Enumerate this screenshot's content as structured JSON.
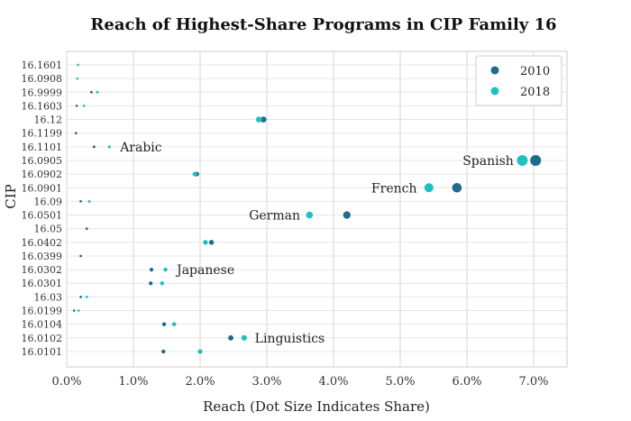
{
  "chart_data": {
    "type": "scatter",
    "title": "Reach of Highest-Share Programs in CIP Family 16",
    "xlabel": "Reach (Dot Size Indicates Share)",
    "ylabel": "CIP",
    "xlim": [
      0,
      0.075
    ],
    "x_ticks": [
      "0.0%",
      "1.0%",
      "2.0%",
      "3.0%",
      "4.0%",
      "5.0%",
      "6.0%",
      "7.0%"
    ],
    "grid": true,
    "legend_position": "top-right",
    "categories": [
      "16.1601",
      "16.0908",
      "16.9999",
      "16.1603",
      "16.12",
      "16.1199",
      "16.1101",
      "16.0905",
      "16.0902",
      "16.0901",
      "16.09",
      "16.0501",
      "16.05",
      "16.0402",
      "16.0399",
      "16.0302",
      "16.0301",
      "16.03",
      "16.0199",
      "16.0104",
      "16.0102",
      "16.0101"
    ],
    "series": [
      {
        "name": "2010",
        "color": "#1f6b8e",
        "values": [
          {
            "cip": "16.9999",
            "x": 0.0037
          },
          {
            "cip": "16.1603",
            "x": 0.0015
          },
          {
            "cip": "16.12",
            "x": 0.0295
          },
          {
            "cip": "16.1199",
            "x": 0.0014
          },
          {
            "cip": "16.1101",
            "x": 0.0041
          },
          {
            "cip": "16.0905",
            "x": 0.0703
          },
          {
            "cip": "16.0902",
            "x": 0.0195
          },
          {
            "cip": "16.0901",
            "x": 0.0585
          },
          {
            "cip": "16.09",
            "x": 0.0021
          },
          {
            "cip": "16.0501",
            "x": 0.042
          },
          {
            "cip": "16.05",
            "x": 0.003
          },
          {
            "cip": "16.0402",
            "x": 0.0217
          },
          {
            "cip": "16.0399",
            "x": 0.0021
          },
          {
            "cip": "16.0302",
            "x": 0.0127
          },
          {
            "cip": "16.0301",
            "x": 0.0126
          },
          {
            "cip": "16.03",
            "x": 0.0021
          },
          {
            "cip": "16.0199",
            "x": 0.0011
          },
          {
            "cip": "16.0104",
            "x": 0.0146
          },
          {
            "cip": "16.0102",
            "x": 0.0246
          },
          {
            "cip": "16.0101",
            "x": 0.0145
          }
        ]
      },
      {
        "name": "2018",
        "color": "#22bfc0",
        "values": [
          {
            "cip": "16.1601",
            "x": 0.0017
          },
          {
            "cip": "16.0908",
            "x": 0.0016
          },
          {
            "cip": "16.9999",
            "x": 0.0046
          },
          {
            "cip": "16.1603",
            "x": 0.0026
          },
          {
            "cip": "16.12",
            "x": 0.0288
          },
          {
            "cip": "16.1101",
            "x": 0.0064
          },
          {
            "cip": "16.0905",
            "x": 0.0683
          },
          {
            "cip": "16.0902",
            "x": 0.0192
          },
          {
            "cip": "16.0901",
            "x": 0.0543
          },
          {
            "cip": "16.09",
            "x": 0.0034
          },
          {
            "cip": "16.0501",
            "x": 0.0364
          },
          {
            "cip": "16.0402",
            "x": 0.0208
          },
          {
            "cip": "16.0302",
            "x": 0.0148
          },
          {
            "cip": "16.0301",
            "x": 0.0143
          },
          {
            "cip": "16.03",
            "x": 0.003
          },
          {
            "cip": "16.0199",
            "x": 0.0018
          },
          {
            "cip": "16.0104",
            "x": 0.0161
          },
          {
            "cip": "16.0102",
            "x": 0.0266
          },
          {
            "cip": "16.0101",
            "x": 0.02
          }
        ]
      }
    ],
    "annotations": [
      {
        "cip": "16.1101",
        "x": 0.008,
        "text": "Arabic",
        "anchor": "start"
      },
      {
        "cip": "16.0905",
        "x": 0.067,
        "text": "Spanish",
        "anchor": "end"
      },
      {
        "cip": "16.0901",
        "x": 0.0525,
        "text": "French",
        "anchor": "end"
      },
      {
        "cip": "16.0501",
        "x": 0.035,
        "text": "German",
        "anchor": "end"
      },
      {
        "cip": "16.0302",
        "x": 0.0165,
        "text": "Japanese",
        "anchor": "start"
      },
      {
        "cip": "16.0102",
        "x": 0.0282,
        "text": "Linguistics",
        "anchor": "start"
      }
    ]
  }
}
